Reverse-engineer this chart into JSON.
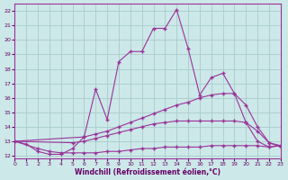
{
  "background_color": "#cce8e8",
  "grid_color": "#aacccc",
  "line_color": "#993399",
  "xlabel": "Windchill (Refroidissement éolien,°C)",
  "xlim": [
    0,
    23
  ],
  "ylim": [
    11.8,
    22.5
  ],
  "yticks": [
    12,
    13,
    14,
    15,
    16,
    17,
    18,
    19,
    20,
    21,
    22
  ],
  "xticks": [
    0,
    1,
    2,
    3,
    4,
    5,
    6,
    7,
    8,
    9,
    10,
    11,
    12,
    13,
    14,
    15,
    16,
    17,
    18,
    19,
    20,
    21,
    22,
    23
  ],
  "series1": [
    [
      0,
      13.0
    ],
    [
      1,
      12.8
    ],
    [
      2,
      12.3
    ],
    [
      3,
      12.1
    ],
    [
      4,
      12.1
    ],
    [
      5,
      12.5
    ],
    [
      6,
      13.3
    ],
    [
      7,
      16.6
    ],
    [
      8,
      14.5
    ],
    [
      9,
      18.5
    ],
    [
      10,
      19.2
    ],
    [
      11,
      19.2
    ],
    [
      12,
      20.8
    ],
    [
      13,
      20.8
    ],
    [
      14,
      22.1
    ],
    [
      15,
      19.4
    ],
    [
      16,
      16.2
    ],
    [
      17,
      17.4
    ],
    [
      18,
      17.7
    ],
    [
      19,
      16.3
    ],
    [
      20,
      14.3
    ],
    [
      21,
      13.0
    ],
    [
      22,
      12.6
    ],
    [
      23,
      12.7
    ]
  ],
  "series2": [
    [
      0,
      13.0
    ],
    [
      6,
      13.3
    ],
    [
      7,
      13.5
    ],
    [
      8,
      13.7
    ],
    [
      9,
      14.0
    ],
    [
      10,
      14.3
    ],
    [
      11,
      14.6
    ],
    [
      12,
      14.9
    ],
    [
      13,
      15.2
    ],
    [
      14,
      15.5
    ],
    [
      15,
      15.7
    ],
    [
      16,
      16.0
    ],
    [
      17,
      16.2
    ],
    [
      18,
      16.3
    ],
    [
      19,
      16.3
    ],
    [
      20,
      15.5
    ],
    [
      21,
      14.0
    ],
    [
      22,
      12.9
    ],
    [
      23,
      12.6
    ]
  ],
  "series3": [
    [
      0,
      13.0
    ],
    [
      5,
      12.9
    ],
    [
      6,
      13.0
    ],
    [
      7,
      13.2
    ],
    [
      8,
      13.4
    ],
    [
      9,
      13.6
    ],
    [
      10,
      13.8
    ],
    [
      11,
      14.0
    ],
    [
      12,
      14.2
    ],
    [
      13,
      14.3
    ],
    [
      14,
      14.4
    ],
    [
      15,
      14.4
    ],
    [
      16,
      14.4
    ],
    [
      17,
      14.4
    ],
    [
      18,
      14.4
    ],
    [
      19,
      14.4
    ],
    [
      20,
      14.3
    ],
    [
      21,
      13.7
    ],
    [
      22,
      12.9
    ],
    [
      23,
      12.7
    ]
  ],
  "series4": [
    [
      0,
      13.0
    ],
    [
      2,
      12.5
    ],
    [
      3,
      12.3
    ],
    [
      4,
      12.2
    ],
    [
      5,
      12.2
    ],
    [
      6,
      12.2
    ],
    [
      7,
      12.2
    ],
    [
      8,
      12.3
    ],
    [
      9,
      12.3
    ],
    [
      10,
      12.4
    ],
    [
      11,
      12.5
    ],
    [
      12,
      12.5
    ],
    [
      13,
      12.6
    ],
    [
      14,
      12.6
    ],
    [
      15,
      12.6
    ],
    [
      16,
      12.6
    ],
    [
      17,
      12.7
    ],
    [
      18,
      12.7
    ],
    [
      19,
      12.7
    ],
    [
      20,
      12.7
    ],
    [
      21,
      12.7
    ],
    [
      22,
      12.6
    ],
    [
      23,
      12.7
    ]
  ]
}
